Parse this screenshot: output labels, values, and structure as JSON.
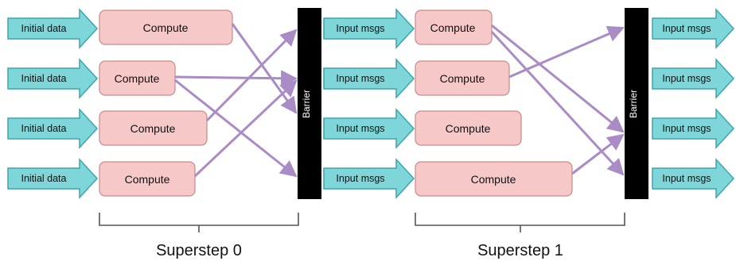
{
  "colors": {
    "input_arrow_fill": "#7fd6d8",
    "input_arrow_stroke": "#3aa6ad",
    "compute_fill": "#f7c8c8",
    "compute_stroke": "#c98a8a",
    "message_line": "#a98bc6",
    "barrier_fill": "#000000",
    "barrier_text": "#ffffff",
    "bracket": "#555555"
  },
  "superstep0": {
    "label": "Superstep 0",
    "inputs": [
      "Initial data",
      "Initial data",
      "Initial data",
      "Initial data"
    ],
    "computes": [
      "Compute",
      "Compute",
      "Compute",
      "Compute"
    ]
  },
  "barrier0": {
    "label": "Barrier"
  },
  "superstep1": {
    "label": "Superstep 1",
    "inputs": [
      "Input msgs",
      "Input msgs",
      "Input msgs",
      "Input msgs"
    ],
    "computes": [
      "Compute",
      "Compute",
      "Compute",
      "Compute"
    ]
  },
  "barrier1": {
    "label": "Barrier"
  },
  "outputs": [
    "Input msgs",
    "Input msgs",
    "Input msgs",
    "Input msgs"
  ]
}
